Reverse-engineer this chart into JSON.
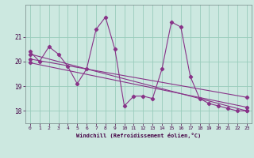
{
  "xlabel": "Windchill (Refroidissement éolien,°C)",
  "ylabel": "",
  "bg_color": "#cce8e0",
  "line_color": "#883388",
  "grid_color": "#99ccbb",
  "xlim": [
    -0.5,
    23.5
  ],
  "ylim": [
    17.5,
    22.3
  ],
  "yticks": [
    18,
    19,
    20,
    21
  ],
  "ytick_labels": [
    "18",
    "19",
    "20",
    "21"
  ],
  "xticks": [
    0,
    1,
    2,
    3,
    4,
    5,
    6,
    7,
    8,
    9,
    10,
    11,
    12,
    13,
    14,
    15,
    16,
    17,
    18,
    19,
    20,
    21,
    22,
    23
  ],
  "series": [
    {
      "x": [
        0,
        1,
        2,
        3,
        4,
        5,
        6,
        7,
        8,
        9,
        10,
        11,
        12,
        13,
        14,
        15,
        16,
        17,
        18,
        19,
        20,
        21,
        22,
        23
      ],
      "y": [
        20.4,
        20.0,
        20.6,
        20.3,
        19.8,
        19.1,
        19.7,
        21.3,
        21.8,
        20.5,
        18.2,
        18.6,
        18.6,
        18.5,
        19.7,
        21.6,
        21.4,
        19.4,
        18.5,
        18.3,
        18.2,
        18.1,
        18.0,
        18.0
      ]
    },
    {
      "x": [
        0,
        23
      ],
      "y": [
        20.3,
        18.0
      ]
    },
    {
      "x": [
        0,
        23
      ],
      "y": [
        20.1,
        18.55
      ]
    },
    {
      "x": [
        0,
        23
      ],
      "y": [
        19.95,
        18.15
      ]
    }
  ]
}
